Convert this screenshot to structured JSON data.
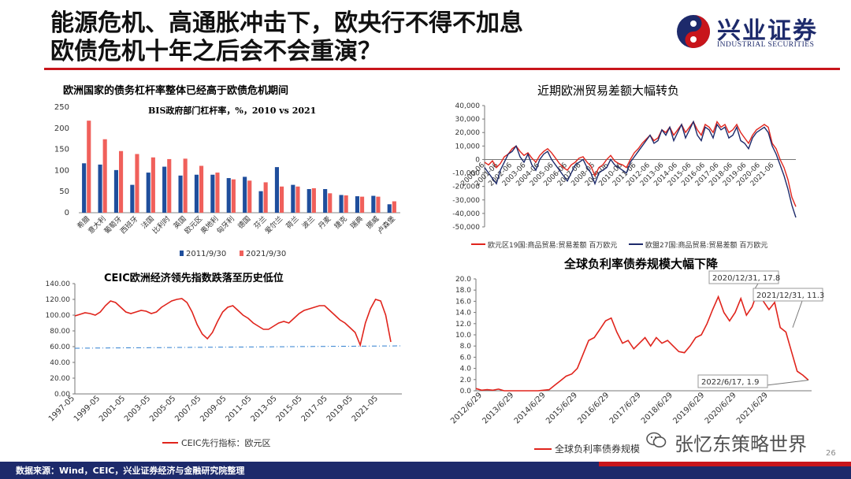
{
  "header": {
    "title_line1": "能源危机、高通胀冲击下，欧央行不得不加息",
    "title_line2": "欧债危机十年之后会不会重演？",
    "logo_cn": "兴业证券",
    "logo_en": "INDUSTRIAL SECURITIES",
    "accent_red": "#c8151b",
    "accent_navy": "#1d2a6b"
  },
  "footer": {
    "source": "数据来源：Wind，CEIC，兴业证券经济与金融研究院整理",
    "page_number": "26"
  },
  "watermark": {
    "text": "张忆东策略世界",
    "icon": "wechat-icon"
  },
  "chart_data": [
    {
      "type": "bar",
      "title": "欧洲国家的债务杠杆率整体已经高于欧债危机期间",
      "subtitle": "BIS政府部门杠杆率，%，2010 vs 2021",
      "categories": [
        "希腊",
        "意大利",
        "葡萄牙",
        "西班牙",
        "法国",
        "比利时",
        "英国",
        "欧元区",
        "奥地利",
        "匈牙利",
        "德国",
        "芬兰",
        "爱尔兰",
        "荷兰",
        "波兰",
        "丹麦",
        "捷克",
        "瑞典",
        "挪威",
        "卢森堡"
      ],
      "series": [
        {
          "name": "2011/9/30",
          "color": "#1f4e9c",
          "values": [
            117,
            114,
            101,
            66,
            95,
            109,
            88,
            90,
            90,
            82,
            85,
            51,
            108,
            66,
            56,
            56,
            42,
            39,
            40,
            20
          ]
        },
        {
          "name": "2021/9/30",
          "color": "#f0605b",
          "values": [
            218,
            174,
            146,
            139,
            131,
            127,
            128,
            111,
            95,
            79,
            76,
            72,
            62,
            62,
            58,
            46,
            41,
            38,
            38,
            27
          ]
        }
      ],
      "ylim": [
        0,
        250
      ],
      "yticks": [
        0,
        50,
        100,
        150,
        200,
        250
      ],
      "legend": "bottom"
    },
    {
      "type": "line",
      "title": "近期欧洲贸易差额大幅转负",
      "x_start": "2000-06",
      "x_ticks": [
        "2000-06",
        "2001-06",
        "2002-06",
        "2003-06",
        "2004-06",
        "2005-06",
        "2006-06",
        "2007-06",
        "2008-06",
        "2009-06",
        "2010-06",
        "2011-06",
        "2012-06",
        "2013-06",
        "2014-06",
        "2015-06",
        "2016-06",
        "2017-06",
        "2018-06",
        "2019-06",
        "2020-06",
        "2021-06"
      ],
      "ylim": [
        -50000,
        40000
      ],
      "yticks": [
        -50000,
        -40000,
        -30000,
        -20000,
        -10000,
        0,
        10000,
        20000,
        30000,
        40000
      ],
      "ytick_labels": [
        "-50,000",
        "-40,000",
        "-30,000",
        "-20,000",
        "-10,000",
        "0",
        "10,000",
        "20,000",
        "30,000",
        "40,000"
      ],
      "series": [
        {
          "name": "欧元区19国:商品贸易:贸易差额 百万欧元",
          "color": "#e0241c",
          "values": [
            -2000,
            -4000,
            -1000,
            -6000,
            -3000,
            2000,
            4000,
            8000,
            10000,
            6000,
            3000,
            5000,
            1000,
            -2000,
            3000,
            6000,
            8000,
            5000,
            1000,
            -3000,
            -6000,
            -8000,
            -4000,
            -2000,
            1000,
            2000,
            -2000,
            -5000,
            -12000,
            -6000,
            -4000,
            0,
            3000,
            -1000,
            -3000,
            -4000,
            -6000,
            0,
            5000,
            8000,
            12000,
            15000,
            18000,
            14000,
            16000,
            22000,
            20000,
            24000,
            18000,
            22000,
            26000,
            20000,
            24000,
            28000,
            22000,
            18000,
            26000,
            24000,
            20000,
            28000,
            24000,
            26000,
            20000,
            22000,
            26000,
            20000,
            16000,
            12000,
            18000,
            22000,
            24000,
            26000,
            24000,
            12000,
            8000,
            0,
            -6000,
            -15000,
            -28000,
            -35000
          ]
        },
        {
          "name": "欧盟27国:商品贸易:贸易差额 百万欧元",
          "color": "#1d2a6b",
          "values": [
            -6000,
            -10000,
            -14000,
            -18000,
            -8000,
            -2000,
            4000,
            6000,
            10000,
            2000,
            -2000,
            4000,
            -4000,
            -8000,
            0,
            4000,
            6000,
            0,
            -4000,
            -8000,
            -12000,
            -16000,
            -10000,
            -4000,
            -2000,
            0,
            -6000,
            -10000,
            -18000,
            -10000,
            -8000,
            -6000,
            0,
            -4000,
            -6000,
            -8000,
            -10000,
            -2000,
            2000,
            6000,
            10000,
            14000,
            18000,
            12000,
            14000,
            22000,
            18000,
            24000,
            14000,
            20000,
            26000,
            16000,
            22000,
            28000,
            18000,
            14000,
            24000,
            22000,
            16000,
            26000,
            22000,
            24000,
            16000,
            18000,
            24000,
            14000,
            12000,
            8000,
            16000,
            20000,
            22000,
            24000,
            20000,
            10000,
            4000,
            -4000,
            -12000,
            -22000,
            -34000,
            -43000
          ]
        }
      ],
      "legend": "bottom"
    },
    {
      "type": "line",
      "title": "CEIC欧洲经济领先指数跌落至历史低位",
      "x_start": "1997-05",
      "x_ticks": [
        "1997-05",
        "1999-05",
        "2001-05",
        "2003-05",
        "2005-05",
        "2007-05",
        "2009-05",
        "2011-05",
        "2013-05",
        "2015-05",
        "2017-05",
        "2019-05",
        "2021-05"
      ],
      "ylim": [
        0,
        140
      ],
      "yticks": [
        0,
        20,
        40,
        60,
        80,
        100,
        120,
        140
      ],
      "ytick_labels": [
        "0.00",
        "20.00",
        "40.00",
        "60.00",
        "80.00",
        "100.00",
        "120.00",
        "140.00"
      ],
      "series": [
        {
          "name": "CEIC先行指标：欧元区",
          "color": "#e0241c",
          "values": [
            99,
            101,
            103,
            102,
            100,
            104,
            112,
            118,
            116,
            110,
            104,
            102,
            104,
            106,
            105,
            102,
            104,
            110,
            114,
            118,
            120,
            121,
            116,
            104,
            88,
            76,
            70,
            78,
            92,
            104,
            110,
            112,
            106,
            100,
            96,
            90,
            86,
            82,
            82,
            86,
            90,
            92,
            90,
            96,
            102,
            106,
            108,
            110,
            112,
            112,
            106,
            100,
            94,
            90,
            84,
            78,
            62,
            90,
            108,
            120,
            118,
            100,
            66
          ]
        },
        {
          "name": "",
          "color": "#2f7fd0",
          "style": "dash-dot",
          "values": [
            58,
            61
          ]
        }
      ],
      "legend": "bottom"
    },
    {
      "type": "line",
      "title": "全球负利率债券规模大幅下降",
      "x_start": "2012/6/29",
      "x_ticks": [
        "2012/6/29",
        "2013/6/29",
        "2014/6/29",
        "2015/6/29",
        "2016/6/29",
        "2017/6/29",
        "2018/6/29",
        "2019/6/29",
        "2020/6/29",
        "2021/6/29"
      ],
      "ylim": [
        0,
        20
      ],
      "yticks": [
        0,
        2,
        4,
        6,
        8,
        10,
        12,
        14,
        16,
        18,
        20
      ],
      "ytick_labels": [
        "0.0",
        "2.0",
        "4.0",
        "6.0",
        "8.0",
        "10.0",
        "12.0",
        "14.0",
        "16.0",
        "18.0",
        "20.0"
      ],
      "series": [
        {
          "name": "全球负利率债券规模",
          "color": "#e0241c",
          "values": [
            0.4,
            0.1,
            0.2,
            0.1,
            0.3,
            0.0,
            0.0,
            0.0,
            0.0,
            0.0,
            0.0,
            0.0,
            0.1,
            0.2,
            1.0,
            1.8,
            2.6,
            3.0,
            4.0,
            6.5,
            9.0,
            9.5,
            11.0,
            12.5,
            13.0,
            10.5,
            8.5,
            9.0,
            7.5,
            8.5,
            9.5,
            8.0,
            9.5,
            8.5,
            9.0,
            8.0,
            7.0,
            6.8,
            8.0,
            9.5,
            10.0,
            12.0,
            14.5,
            16.8,
            14.0,
            12.5,
            14.0,
            16.5,
            13.5,
            15.0,
            17.8,
            16.0,
            14.5,
            15.8,
            11.3,
            10.5,
            7.0,
            3.5,
            2.8,
            1.9
          ]
        }
      ],
      "annotations": [
        "2020/12/31, 17.8",
        "2021/12/31, 11.3",
        "2022/6/17, 1.9"
      ],
      "legend": "bottom"
    }
  ]
}
